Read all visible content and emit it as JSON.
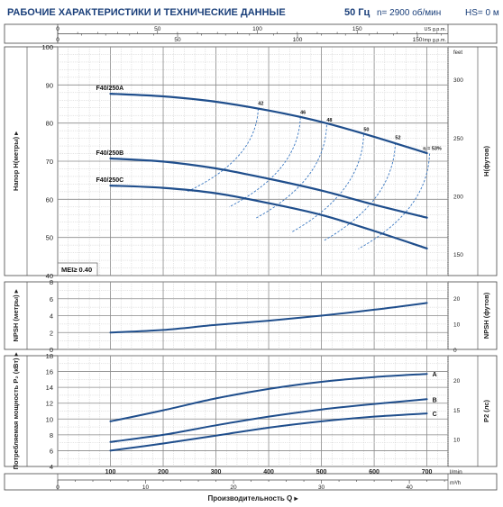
{
  "header": {
    "title": "РАБОЧИЕ ХАРАКТЕРИСТИКИ И ТЕХНИЧЕСКИЕ ДАННЫЕ",
    "frequency": "50 Гц",
    "speed": "n= 2900 об/мин",
    "hs": "HS= 0 м"
  },
  "colors": {
    "curve": "#1f4e8c",
    "eff": "#3a78c2",
    "grid": "#9a9a9a",
    "title": "#1a3f7a"
  },
  "chart_data": [
    {
      "type": "line",
      "name": "head",
      "xlim": [
        0,
        740
      ],
      "ylim": [
        40,
        100
      ],
      "yticks": [
        40,
        50,
        60,
        70,
        80,
        90,
        100
      ],
      "ylabel": "Напор H(метры)",
      "right_axis": {
        "label": "H(футов)",
        "unit": "feet",
        "ticks": [
          150,
          200,
          250,
          300
        ]
      },
      "top_axis": {
        "us": {
          "unit": "US g.p.m.",
          "ticks": [
            0,
            50,
            100,
            150
          ]
        },
        "imp": {
          "unit": "Imp g.p.m.",
          "ticks": [
            0,
            50,
            100,
            150
          ]
        }
      },
      "note": "MEI≥ 0.40",
      "series": [
        {
          "name": "F40/250A",
          "x": [
            100,
            200,
            300,
            400,
            500,
            600,
            700
          ],
          "y": [
            87.7,
            87.0,
            85.6,
            83.3,
            80.3,
            76.4,
            72.1
          ]
        },
        {
          "name": "F40/250B",
          "x": [
            100,
            200,
            300,
            400,
            500,
            600,
            700
          ],
          "y": [
            70.7,
            69.9,
            68.1,
            65.4,
            62.3,
            58.6,
            55.2
          ]
        },
        {
          "name": "F40/250C",
          "x": [
            100,
            200,
            300,
            400,
            500,
            600,
            700
          ],
          "y": [
            63.6,
            63.0,
            61.6,
            59.0,
            55.9,
            51.7,
            47.1
          ]
        }
      ],
      "efficiency": [
        {
          "label": "42",
          "x": 380,
          "y_top": 83.8,
          "y_bottom": 62.0
        },
        {
          "label": "46",
          "x": 460,
          "y_top": 81.5,
          "y_bottom": 58.0
        },
        {
          "label": "48",
          "x": 510,
          "y_top": 79.5,
          "y_bottom": 55.0
        },
        {
          "label": "50",
          "x": 580,
          "y_top": 77.0,
          "y_bottom": 51.5
        },
        {
          "label": "52",
          "x": 640,
          "y_top": 74.8,
          "y_bottom": 49.2
        },
        {
          "label": "η = 53%",
          "x": 705,
          "y_top": 72.0,
          "y_bottom": 47.0
        }
      ]
    },
    {
      "type": "line",
      "name": "npsh",
      "xlim": [
        0,
        740
      ],
      "ylim": [
        0,
        8
      ],
      "yticks": [
        0,
        2,
        4,
        6,
        8
      ],
      "ylabel": "NPSH (метры)",
      "right_axis": {
        "label": "NPSH (футов)",
        "ticks": [
          0,
          10,
          20
        ]
      },
      "series": [
        {
          "name": "",
          "x": [
            100,
            200,
            300,
            400,
            500,
            600,
            700
          ],
          "y": [
            2.0,
            2.3,
            2.9,
            3.4,
            4.0,
            4.7,
            5.5
          ]
        }
      ]
    },
    {
      "type": "line",
      "name": "power",
      "xlim": [
        0,
        740
      ],
      "ylim": [
        4,
        18
      ],
      "yticks": [
        4,
        6,
        8,
        10,
        12,
        14,
        16,
        18
      ],
      "ylabel": "Потребляемая мощность P₂ (кВт)",
      "right_axis": {
        "label": "P2 (лс)",
        "ticks": [
          10,
          15,
          20
        ]
      },
      "xticks": [
        100,
        200,
        300,
        400,
        500,
        600,
        700
      ],
      "xunit": "l/min",
      "bottom_axis": {
        "unit": "m³/h",
        "ticks": [
          0,
          10,
          20,
          30,
          40
        ]
      },
      "xlabel": "Производительность Q",
      "series": [
        {
          "name": "A",
          "x": [
            100,
            200,
            300,
            400,
            500,
            600,
            700
          ],
          "y": [
            9.7,
            11.1,
            12.6,
            13.8,
            14.7,
            15.3,
            15.7
          ]
        },
        {
          "name": "B",
          "x": [
            100,
            200,
            300,
            400,
            500,
            600,
            700
          ],
          "y": [
            7.1,
            8.0,
            9.2,
            10.3,
            11.2,
            11.9,
            12.5
          ]
        },
        {
          "name": "C",
          "x": [
            100,
            200,
            300,
            400,
            500,
            600,
            700
          ],
          "y": [
            6.0,
            6.9,
            7.9,
            8.9,
            9.7,
            10.3,
            10.7
          ]
        }
      ]
    }
  ]
}
